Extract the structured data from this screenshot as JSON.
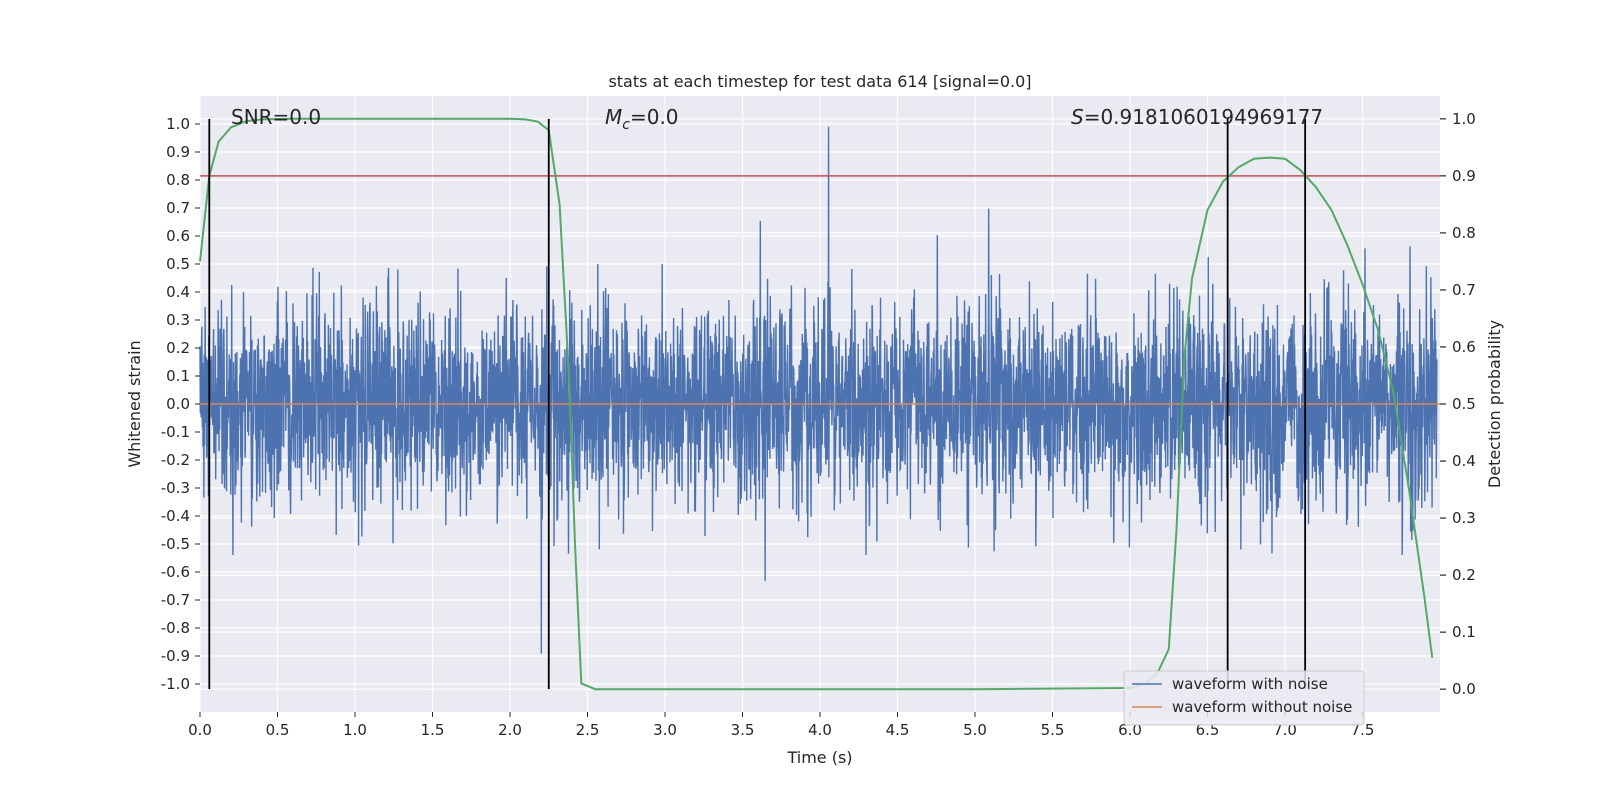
{
  "chart_data": {
    "type": "line",
    "title": "stats at each timestep for test data 614 [signal=0.0]",
    "xlabel": "Time (s)",
    "ylabel": "Whitened strain",
    "y2label": "Detection probability",
    "xlim": [
      0.0,
      8.0
    ],
    "ylim": [
      -1.0,
      1.0
    ],
    "y2lim": [
      -0.04,
      1.04
    ],
    "x_ticks": [
      "0.0",
      "0.5",
      "1.0",
      "1.5",
      "2.0",
      "2.5",
      "3.0",
      "3.5",
      "4.0",
      "4.5",
      "5.0",
      "5.5",
      "6.0",
      "6.5",
      "7.0",
      "7.5"
    ],
    "y_ticks": [
      "1.0",
      "0.9",
      "0.8",
      "0.7",
      "0.6",
      "0.5",
      "0.4",
      "0.3",
      "0.2",
      "0.1",
      "0.0",
      "-0.1",
      "-0.2",
      "-0.3",
      "-0.4",
      "-0.5",
      "-0.6",
      "-0.7",
      "-0.8",
      "-0.9",
      "-1.0"
    ],
    "y2_ticks": [
      "1.0",
      "0.9",
      "0.8",
      "0.7",
      "0.6",
      "0.5",
      "0.4",
      "0.3",
      "0.2",
      "0.1",
      "0.0"
    ],
    "grid": true,
    "legend_position": "bottom-right",
    "annotations": {
      "snr": "SNR=0.0",
      "mc_symbol": "M",
      "mc_sub": "c",
      "mc_value": "=0.0",
      "s_symbol": "S",
      "s_value": "=0.9181060194969177"
    },
    "threshold_y2": 0.9,
    "vertical_markers_x": [
      0.06,
      2.25,
      6.63,
      7.13
    ],
    "series": [
      {
        "name": "waveform with noise",
        "color": "#4c72b0",
        "kind": "noise",
        "typical_amplitude": 0.33,
        "max_amplitude": 0.99
      },
      {
        "name": "waveform without noise",
        "color": "#dd8452",
        "x": [
          0.0,
          8.0
        ],
        "y": [
          0.0,
          0.0
        ]
      },
      {
        "color": "#55a868",
        "axis": "right",
        "x": [
          0.0,
          0.06,
          0.12,
          0.2,
          0.3,
          0.4,
          0.6,
          1.0,
          1.5,
          2.0,
          2.1,
          2.18,
          2.25,
          2.32,
          2.38,
          2.42,
          2.46,
          2.55,
          3.0,
          4.0,
          5.0,
          6.0,
          6.1,
          6.18,
          6.25,
          6.3,
          6.35,
          6.4,
          6.5,
          6.6,
          6.7,
          6.8,
          6.9,
          7.0,
          7.1,
          7.2,
          7.3,
          7.4,
          7.5,
          7.6,
          7.7,
          7.8,
          7.9,
          7.95
        ],
        "y": [
          0.75,
          0.9,
          0.96,
          0.985,
          0.996,
          0.999,
          1.0,
          1.0,
          1.0,
          1.0,
          0.999,
          0.995,
          0.98,
          0.85,
          0.55,
          0.25,
          0.01,
          0.0,
          0.0,
          0.0,
          0.0,
          0.002,
          0.01,
          0.03,
          0.07,
          0.28,
          0.58,
          0.72,
          0.84,
          0.89,
          0.915,
          0.93,
          0.932,
          0.93,
          0.91,
          0.88,
          0.84,
          0.78,
          0.71,
          0.63,
          0.52,
          0.35,
          0.16,
          0.055
        ]
      }
    ]
  }
}
